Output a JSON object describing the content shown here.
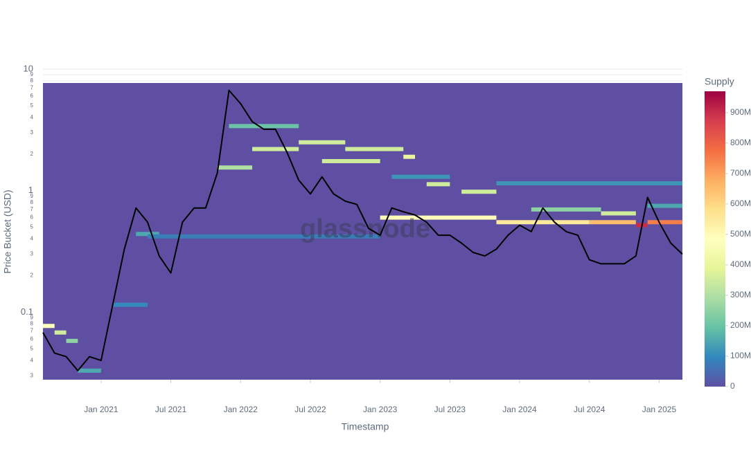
{
  "chart_data": {
    "type": "heatmap",
    "x_label": "Timestamp",
    "y_label": "Price Bucket (USD)",
    "watermark": "glassnode",
    "log_y": true,
    "grid": true,
    "xlim": [
      "2020-08",
      "2025-03"
    ],
    "xticks": [
      {
        "value": "2021-01",
        "label": "Jan 2021"
      },
      {
        "value": "2021-07",
        "label": "Jul 2021"
      },
      {
        "value": "2022-01",
        "label": "Jan 2022"
      },
      {
        "value": "2022-07",
        "label": "Jul 2022"
      },
      {
        "value": "2023-01",
        "label": "Jan 2023"
      },
      {
        "value": "2023-07",
        "label": "Jul 2023"
      },
      {
        "value": "2024-01",
        "label": "Jan 2024"
      },
      {
        "value": "2024-07",
        "label": "Jul 2024"
      },
      {
        "value": "2025-01",
        "label": "Jan 2025"
      }
    ],
    "ylim": [
      0.0278,
      10
    ],
    "yticks": [
      10,
      9,
      8,
      7,
      6,
      5,
      4,
      3,
      2,
      1,
      {
        "value": 0.9,
        "label": "9"
      },
      {
        "value": 0.8,
        "label": "8"
      },
      {
        "value": 0.7,
        "label": "7"
      },
      {
        "value": 0.6,
        "label": "6"
      },
      {
        "value": 0.5,
        "label": "5"
      },
      {
        "value": 0.4,
        "label": "4"
      },
      {
        "value": 0.3,
        "label": "3"
      },
      {
        "value": 0.2,
        "label": "2"
      },
      0.1,
      {
        "value": 0.09,
        "label": "9"
      },
      {
        "value": 0.08,
        "label": "8"
      },
      {
        "value": 0.07,
        "label": "7"
      },
      {
        "value": 0.06,
        "label": "6"
      },
      {
        "value": 0.05,
        "label": "5"
      },
      {
        "value": 0.04,
        "label": "4"
      },
      {
        "value": 0.03,
        "label": "3"
      }
    ],
    "cells": {
      "x": [
        "2020-08",
        "2020-09",
        "2020-10",
        "2020-11",
        "2021-02",
        "2021-04",
        "2021-05",
        "2021-11",
        "2021-12",
        "2022-02",
        "2022-06",
        "2022-08",
        "2022-10",
        "2023-03",
        "2023-02",
        "2023-05",
        "2023-08",
        "2023-11",
        "2023-01",
        "2023-11",
        "2024-07",
        "2024-11",
        "2024-12",
        "2024-02",
        "2024-08",
        "2024-12"
      ],
      "x_end": [
        "2020-09",
        "2020-10",
        "2020-11",
        "2021-01",
        "2021-05",
        "2021-06",
        "2023-01",
        "2022-02",
        "2022-06",
        "2022-06",
        "2022-10",
        "2023-01",
        "2023-03",
        "2023-04",
        "2023-07",
        "2023-07",
        "2023-11",
        "2025-03",
        "2023-11",
        "2024-07",
        "2024-11",
        "2024-12",
        "2025-03",
        "2024-08",
        "2024-11",
        "2025-03"
      ],
      "y": [
        0.077,
        0.068,
        0.058,
        0.033,
        0.115,
        0.44,
        0.42,
        1.55,
        3.4,
        2.2,
        2.5,
        1.75,
        2.2,
        1.9,
        1.3,
        1.13,
        0.98,
        1.15,
        0.6,
        0.55,
        0.55,
        0.52,
        0.55,
        0.7,
        0.65,
        0.75
      ],
      "z": [
        480000000,
        350000000,
        250000000,
        150000000,
        100000000,
        150000000,
        80000000,
        300000000,
        200000000,
        350000000,
        350000000,
        350000000,
        350000000,
        400000000,
        120000000,
        350000000,
        350000000,
        120000000,
        500000000,
        550000000,
        650000000,
        900000000,
        750000000,
        250000000,
        350000000,
        150000000
      ]
    },
    "colorbar": {
      "title": "Supply",
      "zlim": [
        0,
        970000000
      ],
      "ticks": [
        0,
        {
          "value": 100000000,
          "label": "100M"
        },
        {
          "value": 200000000,
          "label": "200M"
        },
        {
          "value": 300000000,
          "label": "300M"
        },
        {
          "value": 400000000,
          "label": "400M"
        },
        {
          "value": 500000000,
          "label": "500M"
        },
        {
          "value": 600000000,
          "label": "600M"
        },
        {
          "value": 700000000,
          "label": "700M"
        },
        {
          "value": 800000000,
          "label": "800M"
        },
        {
          "value": 900000000,
          "label": "900M"
        }
      ],
      "colorscale": [
        "#5e4fa2",
        "#3288bd",
        "#66c2a5",
        "#abdda4",
        "#e6f598",
        "#ffffbf",
        "#fee08b",
        "#fdae61",
        "#f46d43",
        "#d53e4f",
        "#9e0142"
      ]
    },
    "line": {
      "color": "#000000",
      "x": [
        "2020-08",
        "2020-09",
        "2020-10",
        "2020-11",
        "2020-12",
        "2021-01",
        "2021-02",
        "2021-03",
        "2021-04",
        "2021-05",
        "2021-06",
        "2021-07",
        "2021-08",
        "2021-09",
        "2021-10",
        "2021-11",
        "2021-12",
        "2022-01",
        "2022-02",
        "2022-03",
        "2022-04",
        "2022-05",
        "2022-06",
        "2022-07",
        "2022-08",
        "2022-09",
        "2022-10",
        "2022-11",
        "2022-12",
        "2023-01",
        "2023-02",
        "2023-03",
        "2023-04",
        "2023-05",
        "2023-06",
        "2023-07",
        "2023-08",
        "2023-09",
        "2023-10",
        "2023-11",
        "2023-12",
        "2024-01",
        "2024-02",
        "2024-03",
        "2024-04",
        "2024-05",
        "2024-06",
        "2024-07",
        "2024-08",
        "2024-09",
        "2024-10",
        "2024-11",
        "2024-12",
        "2025-01",
        "2025-02",
        "2025-03"
      ],
      "values": [
        0.068,
        0.046,
        0.043,
        0.033,
        0.043,
        0.04,
        0.115,
        0.33,
        0.72,
        0.55,
        0.29,
        0.21,
        0.55,
        0.72,
        0.72,
        1.4,
        6.7,
        5.2,
        3.7,
        3.2,
        3.2,
        2.06,
        1.22,
        0.94,
        1.3,
        0.94,
        0.82,
        0.77,
        0.49,
        0.43,
        0.72,
        0.67,
        0.63,
        0.55,
        0.43,
        0.43,
        0.37,
        0.31,
        0.29,
        0.33,
        0.43,
        0.52,
        0.46,
        0.72,
        0.55,
        0.46,
        0.43,
        0.27,
        0.25,
        0.25,
        0.25,
        0.29,
        0.88,
        0.55,
        0.37,
        0.3
      ]
    }
  }
}
